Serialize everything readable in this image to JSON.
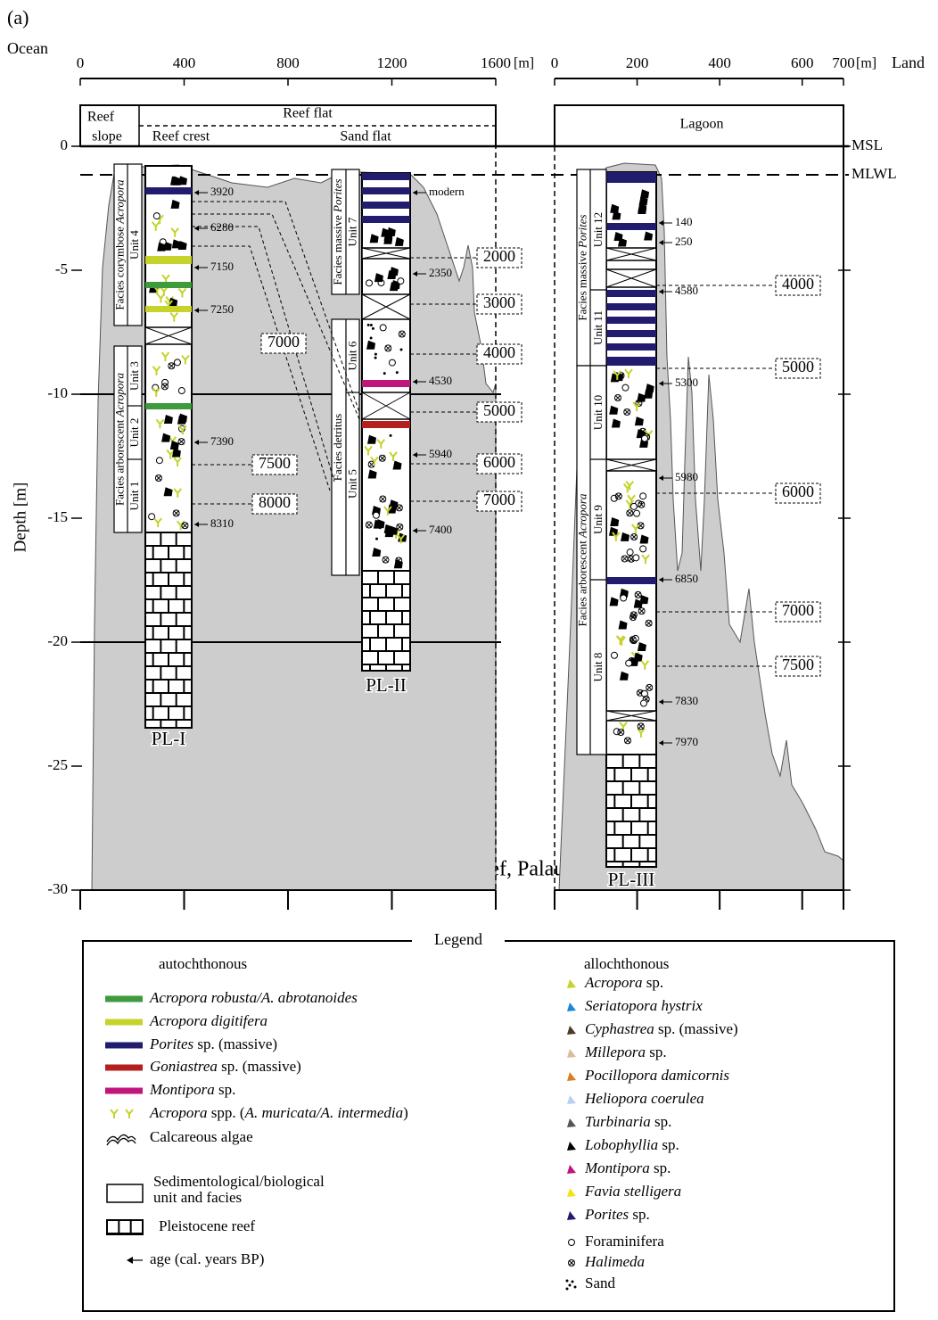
{
  "panel_label": "(a)",
  "ocean": "Ocean",
  "land": "Land",
  "left_axis": {
    "ticks": [
      0,
      400,
      800,
      1200,
      1600
    ],
    "unit": "[m]"
  },
  "right_axis": {
    "ticks": [
      0,
      200,
      400,
      600,
      700
    ],
    "unit": "[m]"
  },
  "depth_axis": {
    "label": "Depth [m]",
    "ticks": [
      0,
      -5,
      -10,
      -15,
      -20,
      -25,
      -30
    ]
  },
  "zones": {
    "reef_slope": [
      "Reef",
      "slope"
    ],
    "reef_flat": "Reef flat",
    "reef_crest": "Reef crest",
    "sand_flat": "Sand flat",
    "lagoon": "Lagoon"
  },
  "levels": {
    "msl": "MSL",
    "mlwl": "MLWL"
  },
  "site": "Ngemelis reef, Palau Islands",
  "cores": [
    {
      "name": "PL-I",
      "ages": [
        "3920",
        "6280",
        "7150",
        "7250",
        "7390",
        "8310"
      ],
      "facies": [
        {
          "parts": [
            {
              "text": "Facies corymbose "
            },
            {
              "text": "Acropora",
              "italic": true
            }
          ],
          "units": [
            "Unit 4"
          ]
        },
        {
          "parts": [
            {
              "text": "Facies arborescent "
            },
            {
              "text": "Acropora",
              "italic": true
            }
          ],
          "units": [
            "Unit 3",
            "Unit 2",
            "Unit 1"
          ]
        }
      ],
      "isochrons": [
        "7000",
        "7500",
        "8000"
      ]
    },
    {
      "name": "PL-II",
      "ages": [
        "modern",
        "2350",
        "4530",
        "5940",
        "7400"
      ],
      "facies": [
        {
          "parts": [
            {
              "text": "Facies massive "
            },
            {
              "text": "Porites",
              "italic": true
            }
          ],
          "units": [
            "Unit 7"
          ]
        },
        {
          "parts": [
            {
              "text": "Facies detritus"
            }
          ],
          "units": [
            "Unit 6",
            "Unit 5"
          ]
        }
      ],
      "isochrons": [
        "2000",
        "3000",
        "4000",
        "5000",
        "6000",
        "7000"
      ]
    },
    {
      "name": "PL-III",
      "ages": [
        "140",
        "250",
        "4580",
        "5300",
        "5980",
        "6850",
        "7830",
        "7970"
      ],
      "facies": [
        {
          "parts": [
            {
              "text": "Facies massive "
            },
            {
              "text": "Porites",
              "italic": true
            }
          ],
          "units": [
            "Unit 12",
            "Unit 11"
          ]
        },
        {
          "parts": [
            {
              "text": "Facies arborescent "
            },
            {
              "text": "Acropora",
              "italic": true
            }
          ],
          "units": [
            "Unit 10",
            "Unit 9",
            "Unit 8"
          ]
        }
      ],
      "isochrons": [
        "4000",
        "5000",
        "6000",
        "7000",
        "7500"
      ]
    }
  ],
  "legend": {
    "title": "Legend",
    "autochthonous": "autochthonous",
    "allochthonous": "allochthonous",
    "auto_items": [
      {
        "parts": [
          {
            "text": "Acropora robusta/A. abrotanoides",
            "italic": true
          }
        ],
        "color": "#3f9a3c"
      },
      {
        "parts": [
          {
            "text": "Acropora digitifera",
            "italic": true
          }
        ],
        "color": "#c5d32b"
      },
      {
        "parts": [
          {
            "text": "Porites",
            "italic": true
          },
          {
            "text": " sp. (massive)"
          }
        ],
        "color": "#221c6e"
      },
      {
        "parts": [
          {
            "text": "Goniastrea",
            "italic": true
          },
          {
            "text": " sp. (massive)"
          }
        ],
        "color": "#b5201e"
      },
      {
        "parts": [
          {
            "text": "Montipora",
            "italic": true
          },
          {
            "text": " sp."
          }
        ],
        "color": "#c0167c"
      },
      {
        "parts": [
          {
            "text": "Acropora",
            "italic": true
          },
          {
            "text": " spp. ("
          },
          {
            "text": "A. muricata/A. intermedia",
            "italic": true
          },
          {
            "text": ")"
          }
        ],
        "color": "#c5d32b"
      },
      {
        "parts": [
          {
            "text": "Calcareous algae"
          }
        ]
      }
    ],
    "unit": [
      "Sedimentological/biological",
      "unit and facies"
    ],
    "pleistocene": "Pleistocene reef",
    "age": "age (cal. years BP)",
    "allo_items": [
      {
        "parts": [
          {
            "text": "Acropora",
            "italic": true
          },
          {
            "text": " sp."
          }
        ],
        "color": "#c5d32b"
      },
      {
        "parts": [
          {
            "text": "Seriatopora hystrix",
            "italic": true
          }
        ],
        "color": "#1a88d6"
      },
      {
        "parts": [
          {
            "text": "Cyphastrea",
            "italic": true
          },
          {
            "text": " sp. (massive)"
          }
        ],
        "color": "#4b3b22"
      },
      {
        "parts": [
          {
            "text": "Millepora",
            "italic": true
          },
          {
            "text": " sp."
          }
        ],
        "color": "#d8bf9c"
      },
      {
        "parts": [
          {
            "text": "Pocillopora damicornis",
            "italic": true
          }
        ],
        "color": "#d97f1f"
      },
      {
        "parts": [
          {
            "text": "Heliopora coerulea",
            "italic": true
          }
        ],
        "color": "#b9d1ec"
      },
      {
        "parts": [
          {
            "text": "Turbinaria",
            "italic": true
          },
          {
            "text": " sp."
          }
        ],
        "color": "#555555"
      },
      {
        "parts": [
          {
            "text": "Lobophyllia",
            "italic": true
          },
          {
            "text": " sp."
          }
        ],
        "color": "#000000"
      },
      {
        "parts": [
          {
            "text": "Montipora",
            "italic": true
          },
          {
            "text": " sp."
          }
        ],
        "color": "#c0167c"
      },
      {
        "parts": [
          {
            "text": "Favia stelligera",
            "italic": true
          }
        ],
        "color": "#f2e21e"
      },
      {
        "parts": [
          {
            "text": "Porites",
            "italic": true
          },
          {
            "text": " sp."
          }
        ],
        "color": "#221c6e"
      },
      {
        "parts": [
          {
            "text": "Foraminifera"
          }
        ]
      },
      {
        "parts": [
          {
            "text": "Halimeda",
            "italic": true
          }
        ]
      },
      {
        "parts": [
          {
            "text": "Sand"
          }
        ]
      }
    ]
  }
}
